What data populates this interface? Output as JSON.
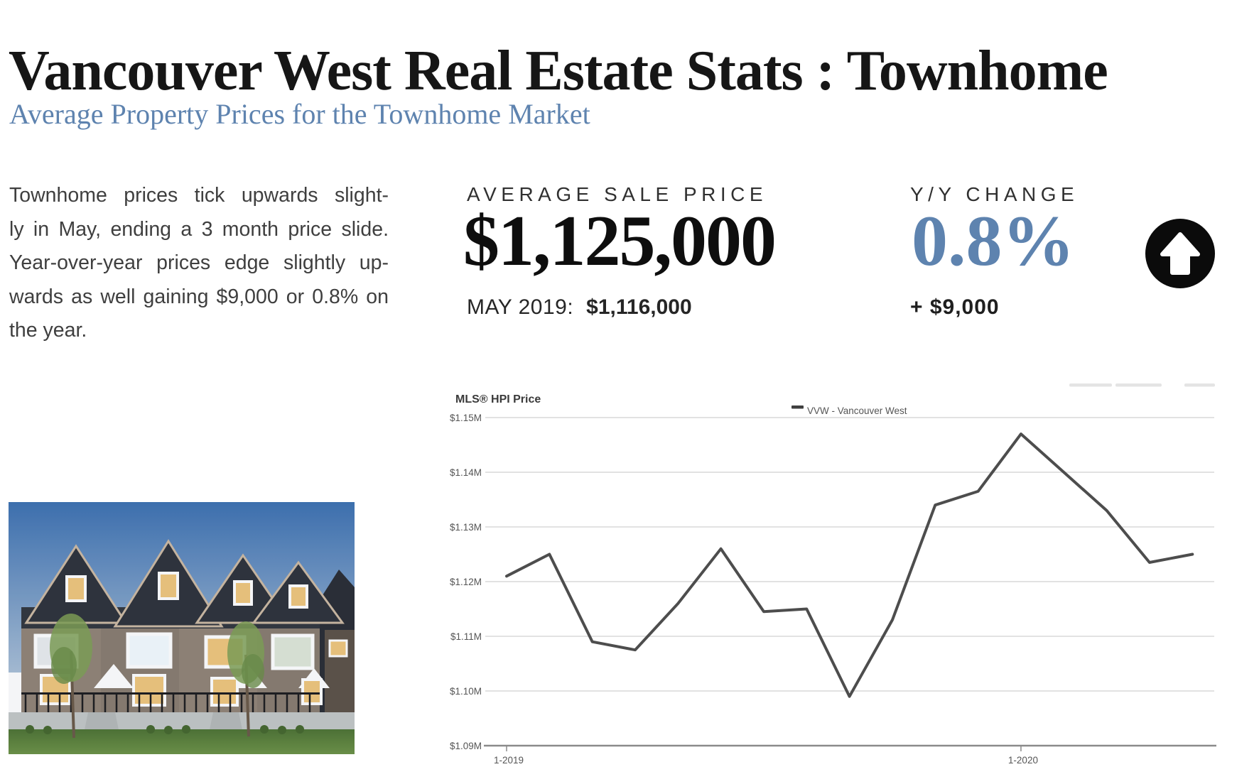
{
  "page": {
    "title": "Vancouver West Real Estate Stats : Townhome",
    "subtitle": "Average Property Prices for the Townhome Market"
  },
  "intro": {
    "lines": [
      "Townhome prices tick upwards slight-",
      "ly in May, ending a 3 month price slide.",
      "Year-over-year prices edge slightly up-",
      "wards as well gaining $9,000 or 0.8% on",
      "the year."
    ],
    "full_text": "Townhome prices tick upwards slightly in May, ending a 3 month price slide. Year-over-year prices edge slightly upwards as well gaining $9,000 or 0.8% on the year."
  },
  "stats": {
    "average_sale_price": {
      "label": "AVERAGE SALE PRICE",
      "value": "$1,125,000",
      "comparison_label": "MAY 2019:",
      "comparison_value": "$1,116,000"
    },
    "yoy_change": {
      "label": "Y/Y CHANGE",
      "value": "0.8%",
      "delta": "+ $9,000",
      "direction": "up",
      "icon": "arrow-up-circle-icon"
    }
  },
  "chart": {
    "title": "MLS® HPI Price",
    "legend_label": "VVW - Vancouver West"
  },
  "chart_data": {
    "type": "line",
    "title": "MLS® HPI Price",
    "x": [
      "1-2019",
      "2-2019",
      "3-2019",
      "4-2019",
      "5-2019",
      "6-2019",
      "7-2019",
      "8-2019",
      "9-2019",
      "10-2019",
      "11-2019",
      "12-2019",
      "1-2020",
      "2-2020",
      "3-2020",
      "4-2020",
      "5-2020"
    ],
    "series": [
      {
        "name": "VVW - Vancouver West",
        "values": [
          1.121,
          1.125,
          1.109,
          1.1075,
          1.116,
          1.126,
          1.1145,
          1.115,
          1.099,
          1.113,
          1.134,
          1.1365,
          1.147,
          1.14,
          1.133,
          1.1235,
          1.125
        ]
      }
    ],
    "unit": "millions of $",
    "ylim": [
      1.09,
      1.15
    ],
    "y_ticks": [
      "$1.15M",
      "$1.14M",
      "$1.13M",
      "$1.12M",
      "$1.11M",
      "$1.10M",
      "$1.09M"
    ],
    "x_tick_labels_shown": [
      "1-2019",
      "1-2020"
    ],
    "grid": "horizontal",
    "legend_position": "top-center"
  },
  "photo": {
    "description": "Row of new townhomes at dusk with dark gabled roofs, white-trimmed lit windows, black iron fences and front lawns"
  },
  "colors": {
    "accent_blue": "#5e83af",
    "heading_text": "#161616",
    "body_text": "#3f3f3f",
    "chart_line": "#4d4d4d",
    "chart_grid": "#d9d9d9",
    "chart_axis": "#8a8a8a",
    "badge_black": "#0b0b0b"
  }
}
